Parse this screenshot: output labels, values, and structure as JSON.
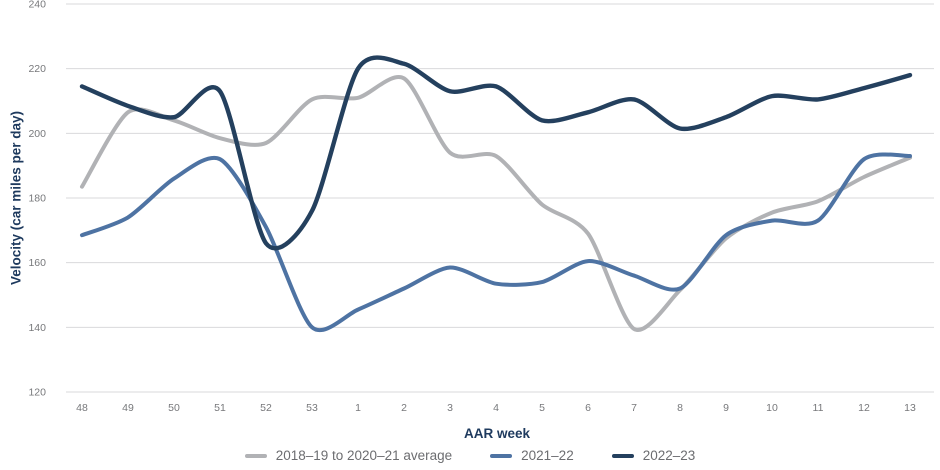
{
  "chart": {
    "y_axis": {
      "title": "Velocity (car miles per day)",
      "ticks": [
        240,
        220,
        200,
        180,
        160,
        140,
        120
      ]
    },
    "x_axis": {
      "title": "AAR week"
    },
    "colors": {
      "background": "#ffffff",
      "gridline": "#d9dadb",
      "tick_text": "#77787b",
      "axis_title_text": "#1e3a5e",
      "legend_text": "#6c6d70"
    }
  },
  "chart_data": {
    "type": "line",
    "title": "",
    "xlabel": "AAR week",
    "ylabel": "Velocity (car miles per day)",
    "ylim": [
      120,
      240
    ],
    "y_tick_step": 20,
    "grid": "horizontal",
    "legend_position": "bottom",
    "curve": "smoothed spline",
    "categories": [
      "48",
      "49",
      "50",
      "51",
      "52",
      "53",
      "1",
      "2",
      "3",
      "4",
      "5",
      "6",
      "7",
      "8",
      "9",
      "10",
      "11",
      "12",
      "13"
    ],
    "series": [
      {
        "name": "2018–19 to 2020–21 average",
        "color": "#b1b2b5",
        "stroke_width": 4,
        "values": [
          183.5,
          206.5,
          204,
          198.5,
          197,
          210.5,
          211,
          217,
          194,
          193,
          178,
          169,
          139.5,
          151.5,
          167.5,
          175.5,
          179,
          186.5,
          192.5
        ]
      },
      {
        "name": "2021–22",
        "color": "#4e73a3",
        "stroke_width": 4,
        "values": [
          168.5,
          174,
          186,
          192,
          171,
          140,
          145.5,
          152,
          158.5,
          153.5,
          154,
          160.5,
          156,
          152,
          168.5,
          173,
          173,
          192,
          193
        ]
      },
      {
        "name": "2022–23",
        "color": "#24405e",
        "stroke_width": 4.4,
        "values": [
          214.5,
          208.5,
          205,
          213,
          166,
          176,
          220,
          221.5,
          213,
          214.5,
          204,
          206.5,
          210.5,
          201.5,
          205,
          211.5,
          210.5,
          214,
          218
        ]
      }
    ]
  }
}
